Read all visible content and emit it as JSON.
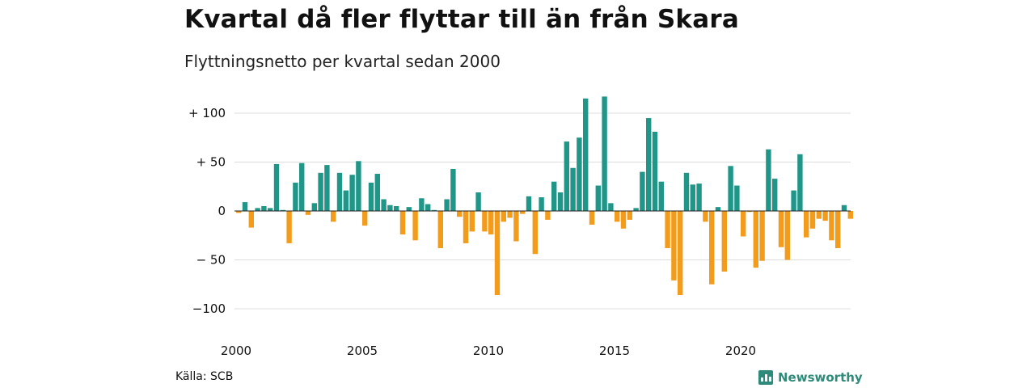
{
  "title": "Kvartal då fler flyttar till än från Skara",
  "subtitle": "Flyttningsnetto per kvartal sedan 2000",
  "source": "Källa: SCB",
  "brand": {
    "name": "Newsworthy",
    "icon": "bar-chart-icon",
    "color": "#2e8b7a"
  },
  "chart_data": {
    "type": "bar",
    "title": "Kvartal då fler flyttar till än från Skara",
    "subtitle": "Flyttningsnetto per kvartal sedan 2000",
    "xlabel": "",
    "ylabel": "",
    "ylim": [
      -118,
      123
    ],
    "grid": true,
    "positive_color": "#1f9688",
    "negative_color": "#f39c1c",
    "y_ticks": [
      {
        "value": 100,
        "label": "+ 100"
      },
      {
        "value": 50,
        "label": "+  50"
      },
      {
        "value": 0,
        "label": "0"
      },
      {
        "value": -50,
        "label": "− 50"
      },
      {
        "value": -100,
        "label": "−100"
      }
    ],
    "x_ticks": [
      "2000",
      "2005",
      "2010",
      "2015",
      "2020"
    ],
    "start": "2000 Q1",
    "end": "2024 Q2",
    "values": [
      -2,
      9,
      -17,
      3,
      5,
      3,
      48,
      1,
      -33,
      29,
      49,
      -4,
      8,
      39,
      47,
      -11,
      39,
      21,
      37,
      51,
      -15,
      29,
      38,
      12,
      6,
      5,
      -24,
      4,
      -30,
      13,
      7,
      1,
      -38,
      12,
      43,
      -6,
      -33,
      -21,
      19,
      -21,
      -24,
      -86,
      -11,
      -7,
      -31,
      -3,
      15,
      -44,
      14,
      -9,
      30,
      19,
      71,
      44,
      75,
      115,
      -14,
      26,
      117,
      8,
      -11,
      -18,
      -9,
      3,
      40,
      95,
      81,
      30,
      -38,
      -71,
      -86,
      39,
      27,
      28,
      -11,
      -75,
      4,
      -62,
      46,
      26,
      -26,
      -1,
      -58,
      -51,
      63,
      33,
      -37,
      -50,
      21,
      58,
      -27,
      -18,
      -8,
      -10,
      -30,
      -38,
      6,
      -8
    ]
  }
}
